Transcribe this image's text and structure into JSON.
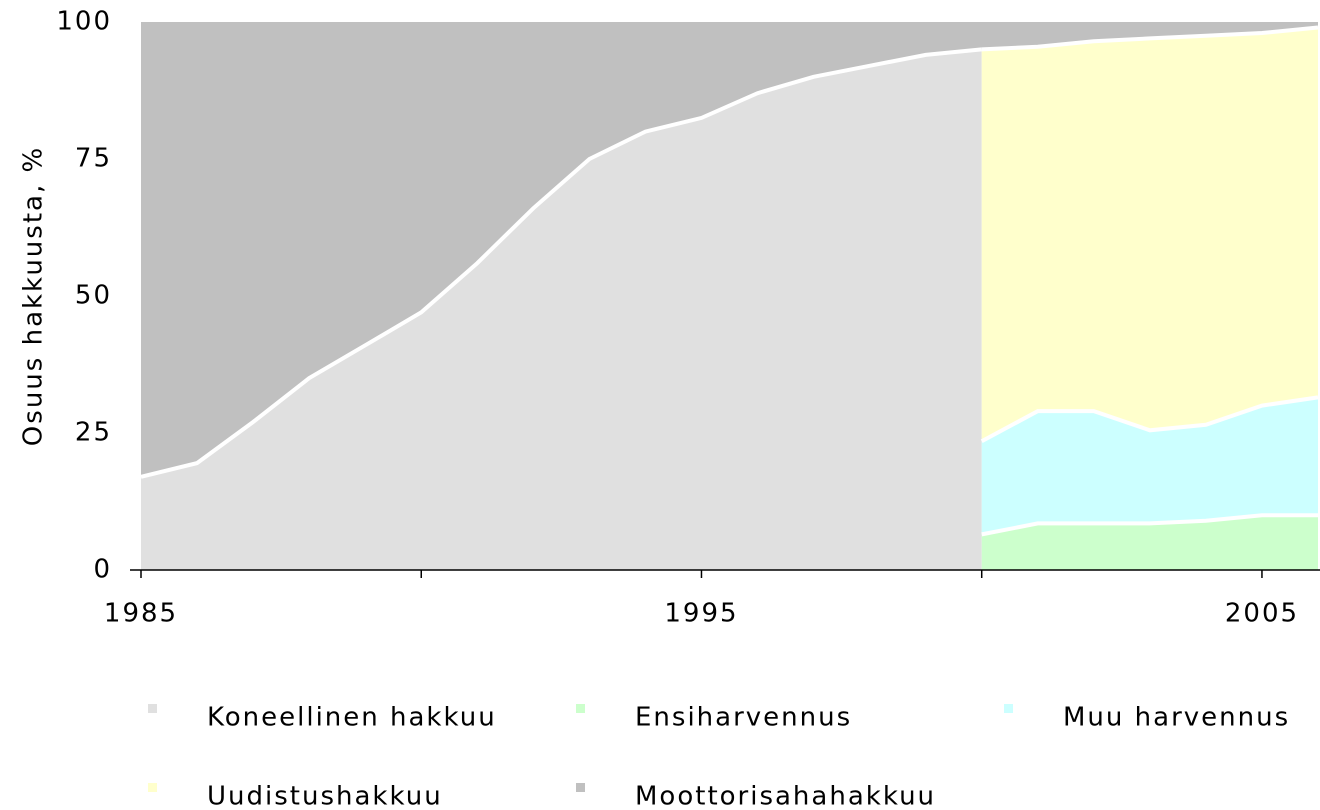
{
  "chart_data": {
    "type": "stacked-area",
    "ylabel": "Osuus hakkuusta, %",
    "x": [
      1985,
      1986,
      1987,
      1988,
      1989,
      1990,
      1991,
      1992,
      1993,
      1994,
      1995,
      1996,
      1997,
      1998,
      1999,
      2000,
      2000,
      2001,
      2002,
      2003,
      2004,
      2005,
      2006
    ],
    "xlim": [
      1985,
      2006
    ],
    "xticks": [
      1985,
      {
        "value": 1990,
        "label": null
      },
      1995,
      {
        "value": 2000,
        "label": null
      },
      2005
    ],
    "ylim": [
      0,
      100
    ],
    "yticks": [
      0,
      25,
      50,
      75,
      100
    ],
    "legend": "bottom",
    "series": [
      {
        "name": "Koneellinen hakkuu",
        "color": "#e0e0e0",
        "values": [
          17,
          19.5,
          27,
          35,
          41,
          47,
          56,
          66,
          75,
          80,
          82.5,
          87,
          90,
          92,
          94,
          95,
          null,
          null,
          null,
          null,
          null,
          null,
          null
        ]
      },
      {
        "name": "Ensiharvennus",
        "color": "#ccffcc",
        "values": [
          null,
          null,
          null,
          null,
          null,
          null,
          null,
          null,
          null,
          null,
          null,
          null,
          null,
          null,
          null,
          null,
          6.5,
          8.5,
          8.5,
          8.5,
          9,
          10,
          10
        ]
      },
      {
        "name": "Muu harvennus",
        "color": "#ccffff",
        "values": [
          null,
          null,
          null,
          null,
          null,
          null,
          null,
          null,
          null,
          null,
          null,
          null,
          null,
          null,
          null,
          null,
          17,
          20.5,
          20.5,
          17,
          17.5,
          20,
          21.5
        ]
      },
      {
        "name": "Uudistushakkuu",
        "color": "#ffffcc",
        "values": [
          null,
          null,
          null,
          null,
          null,
          null,
          null,
          null,
          null,
          null,
          null,
          null,
          null,
          null,
          null,
          null,
          71.5,
          66.5,
          67.5,
          71.5,
          71,
          68,
          67.5
        ]
      },
      {
        "name": "Moottorisahahakkuu",
        "color": "#c0c0c0",
        "values": [
          83,
          80.5,
          73,
          65,
          59,
          53,
          44,
          34,
          25,
          20,
          17.5,
          13,
          10,
          8,
          6,
          5,
          5,
          4.5,
          3.5,
          3,
          2.5,
          2,
          1
        ]
      }
    ]
  }
}
